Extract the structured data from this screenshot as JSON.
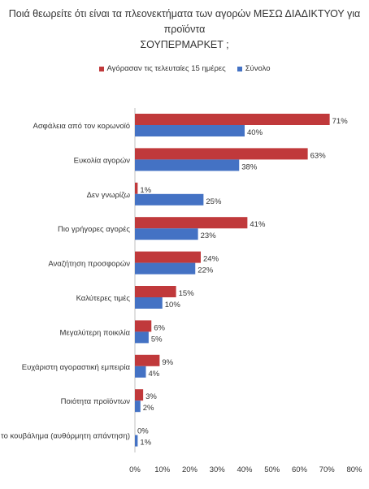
{
  "title_line1": "Ποιά θεωρείτε ότι είναι τα πλεονεκτήματα των αγορών ΜΕΣΩ ΔΙΑΔΙΚΤΥΟΥ για προϊόντα",
  "title_line2": "ΣΟΥΠΕΡΜΑΡΚΕΤ ;",
  "colors": {
    "series1": "#c0393b",
    "series2": "#4472c4"
  },
  "chart_data": {
    "type": "bar",
    "orientation": "horizontal",
    "categories": [
      "Ασφάλεια από τον κορωνοϊό",
      "Ευκολία αγορών",
      "Δεν γνωρίζω",
      "Πιο γρήγορες αγορές",
      "Αναζήτηση προσφορών",
      "Καλύτερες τιμές",
      "Μεγαλύτερη ποικιλία",
      "Ευχάριστη αγοραστική εμπειρία",
      "Ποιότητα προϊόντων",
      "Γλιτώνω το κουβάλημα (αυθόρμητη απάντηση)"
    ],
    "series": [
      {
        "name": "Αγόρασαν τις τελευταίες 15 ημέρες",
        "values": [
          71,
          63,
          1,
          41,
          24,
          15,
          6,
          9,
          3,
          0
        ],
        "labels": [
          "71%",
          "63%",
          "1%",
          "41%",
          "24%",
          "15%",
          "6%",
          "9%",
          "3%",
          "0%"
        ]
      },
      {
        "name": "Σύνολο",
        "values": [
          40,
          38,
          25,
          23,
          22,
          10,
          5,
          4,
          2,
          1
        ],
        "labels": [
          "40%",
          "38%",
          "25%",
          "23%",
          "22%",
          "10%",
          "5%",
          "4%",
          "2%",
          "1%"
        ]
      }
    ],
    "xlim": [
      0,
      80
    ],
    "xticks": [
      "0%",
      "10%",
      "20%",
      "30%",
      "40%",
      "50%",
      "60%",
      "70%",
      "80%"
    ],
    "legend_position": "top",
    "grid": false
  }
}
